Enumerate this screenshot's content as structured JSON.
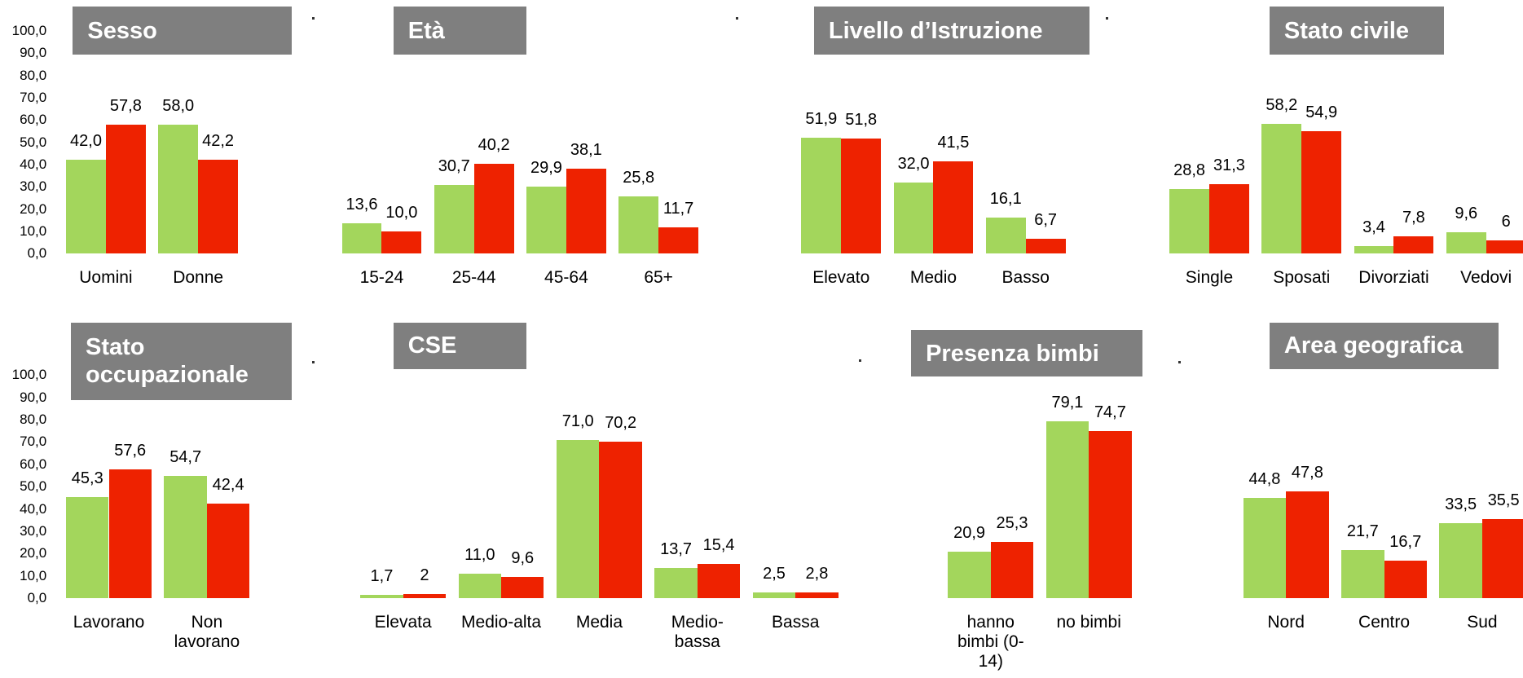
{
  "chart_data": [
    {
      "type": "bar",
      "title": "Sesso",
      "categories": [
        "Uomini",
        "Donne"
      ],
      "series": [
        {
          "color": "#a3d65c",
          "values": [
            42.0,
            58.0
          ],
          "value_labels": [
            "42,0",
            "58,0"
          ]
        },
        {
          "color": "#ee2200",
          "values": [
            57.8,
            42.2
          ],
          "value_labels": [
            "57,8",
            "42,2"
          ]
        }
      ],
      "ylim": [
        0,
        100
      ],
      "yticks": [
        {
          "value": 0,
          "label": "0,0"
        },
        {
          "value": 10,
          "label": "10,0"
        },
        {
          "value": 20,
          "label": "20,0"
        },
        {
          "value": 30,
          "label": "30,0"
        },
        {
          "value": 40,
          "label": "40,0"
        },
        {
          "value": 50,
          "label": "50,0"
        },
        {
          "value": 60,
          "label": "60,0"
        },
        {
          "value": 70,
          "label": "70,0"
        },
        {
          "value": 80,
          "label": "80,0"
        },
        {
          "value": 90,
          "label": "90,0"
        },
        {
          "value": 100,
          "label": "100,0"
        }
      ]
    },
    {
      "type": "bar",
      "title": "Età",
      "categories": [
        "15-24",
        "25-44",
        "45-64",
        "65+"
      ],
      "series": [
        {
          "color": "#a3d65c",
          "values": [
            13.6,
            30.7,
            29.9,
            25.8
          ],
          "value_labels": [
            "13,6",
            "30,7",
            "29,9",
            "25,8"
          ]
        },
        {
          "color": "#ee2200",
          "values": [
            10.0,
            40.2,
            38.1,
            11.7
          ],
          "value_labels": [
            "10,0",
            "40,2",
            "38,1",
            "11,7"
          ]
        }
      ],
      "ylim": [
        0,
        100
      ]
    },
    {
      "type": "bar",
      "title": "Livello d’Istruzione",
      "categories": [
        "Elevato",
        "Medio",
        "Basso"
      ],
      "series": [
        {
          "color": "#a3d65c",
          "values": [
            51.9,
            32.0,
            16.1
          ],
          "value_labels": [
            "51,9",
            "32,0",
            "16,1"
          ]
        },
        {
          "color": "#ee2200",
          "values": [
            51.8,
            41.5,
            6.7
          ],
          "value_labels": [
            "51,8",
            "41,5",
            "6,7"
          ]
        }
      ],
      "ylim": [
        0,
        100
      ]
    },
    {
      "type": "bar",
      "title": "Stato civile",
      "categories": [
        "Single",
        "Sposati",
        "Divorziati",
        "Vedovi"
      ],
      "series": [
        {
          "color": "#a3d65c",
          "values": [
            28.8,
            58.2,
            3.4,
            9.6
          ],
          "value_labels": [
            "28,8",
            "58,2",
            "3,4",
            "9,6"
          ]
        },
        {
          "color": "#ee2200",
          "values": [
            31.3,
            54.9,
            7.8,
            6
          ],
          "value_labels": [
            "31,3",
            "54,9",
            "7,8",
            "6"
          ]
        }
      ],
      "ylim": [
        0,
        100
      ]
    },
    {
      "type": "bar",
      "title": "Stato occupazionale",
      "categories": [
        "Lavorano",
        "Non lavorano"
      ],
      "series": [
        {
          "color": "#a3d65c",
          "values": [
            45.3,
            54.7
          ],
          "value_labels": [
            "45,3",
            "54,7"
          ]
        },
        {
          "color": "#ee2200",
          "values": [
            57.6,
            42.4
          ],
          "value_labels": [
            "57,6",
            "42,4"
          ]
        }
      ],
      "ylim": [
        0,
        100
      ],
      "yticks": [
        {
          "value": 0,
          "label": "0,0"
        },
        {
          "value": 10,
          "label": "10,0"
        },
        {
          "value": 20,
          "label": "20,0"
        },
        {
          "value": 30,
          "label": "30,0"
        },
        {
          "value": 40,
          "label": "40,0"
        },
        {
          "value": 50,
          "label": "50,0"
        },
        {
          "value": 60,
          "label": "60,0"
        },
        {
          "value": 70,
          "label": "70,0"
        },
        {
          "value": 80,
          "label": "80,0"
        },
        {
          "value": 90,
          "label": "90,0"
        },
        {
          "value": 100,
          "label": "100,0"
        }
      ]
    },
    {
      "type": "bar",
      "title": "CSE",
      "categories": [
        "Elevata",
        "Medio-alta",
        "Media",
        "Medio-bassa",
        "Bassa"
      ],
      "series": [
        {
          "color": "#a3d65c",
          "values": [
            1.7,
            11.0,
            71.0,
            13.7,
            2.5
          ],
          "value_labels": [
            "1,7",
            "11,0",
            "71,0",
            "13,7",
            "2,5"
          ]
        },
        {
          "color": "#ee2200",
          "values": [
            2,
            9.6,
            70.2,
            15.4,
            2.8
          ],
          "value_labels": [
            "2",
            "9,6",
            "70,2",
            "15,4",
            "2,8"
          ]
        }
      ],
      "ylim": [
        0,
        100
      ]
    },
    {
      "type": "bar",
      "title": "Presenza bimbi",
      "categories": [
        "hanno bimbi (0-14)",
        "no bimbi"
      ],
      "series": [
        {
          "color": "#a3d65c",
          "values": [
            20.9,
            79.1
          ],
          "value_labels": [
            "20,9",
            "79,1"
          ]
        },
        {
          "color": "#ee2200",
          "values": [
            25.3,
            74.7
          ],
          "value_labels": [
            "25,3",
            "74,7"
          ]
        }
      ],
      "ylim": [
        0,
        100
      ]
    },
    {
      "type": "bar",
      "title": "Area geografica",
      "categories": [
        "Nord",
        "Centro",
        "Sud"
      ],
      "series": [
        {
          "color": "#a3d65c",
          "values": [
            44.8,
            21.7,
            33.5
          ],
          "value_labels": [
            "44,8",
            "21,7",
            "33,5"
          ]
        },
        {
          "color": "#ee2200",
          "values": [
            47.8,
            16.7,
            35.5
          ],
          "value_labels": [
            "47,8",
            "16,7",
            "35,5"
          ]
        }
      ],
      "ylim": [
        0,
        100
      ]
    }
  ]
}
